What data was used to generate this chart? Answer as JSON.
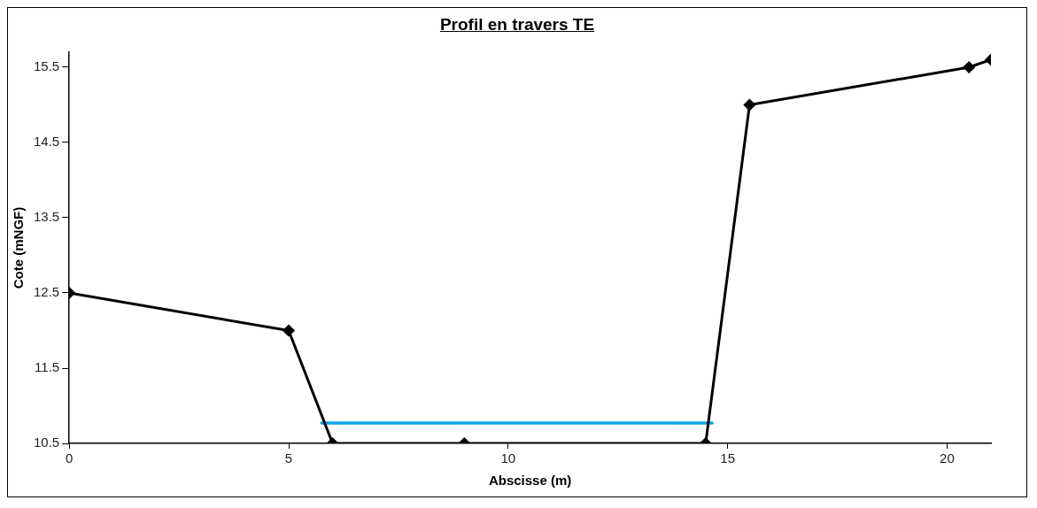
{
  "chart_data": {
    "type": "line",
    "title": "Profil en travers TE",
    "xlabel": "Abscisse (m)",
    "ylabel": "Cote (mNGF)",
    "xlim": [
      0,
      21
    ],
    "xticks": [
      0,
      5,
      10,
      15,
      20
    ],
    "ylim": [
      10.5,
      15.7
    ],
    "yticks": [
      {
        "value": 10.5,
        "label": "10.5"
      },
      {
        "value": 11.5,
        "label": "11.5"
      },
      {
        "value": 12.5,
        "label": "12.5"
      },
      {
        "value": 13.5,
        "label": "13.5"
      },
      {
        "value": 14.5,
        "label": "14.5"
      },
      {
        "value": 15.5,
        "label": "15.5"
      }
    ],
    "grid": false,
    "legend": false,
    "marker": "diamond",
    "line_style": "solid",
    "series": [
      {
        "color": "#000000",
        "x": [
          0,
          5,
          6,
          9,
          14.5,
          15.5,
          20.5,
          21
        ],
        "values": [
          12.5,
          12.0,
          10.5,
          10.5,
          10.5,
          15.0,
          15.5,
          15.6
        ]
      },
      {
        "color": "#0ea5e6",
        "marker": "none",
        "x": [
          5.75,
          14.65
        ],
        "values": [
          10.77,
          10.77
        ]
      }
    ]
  }
}
